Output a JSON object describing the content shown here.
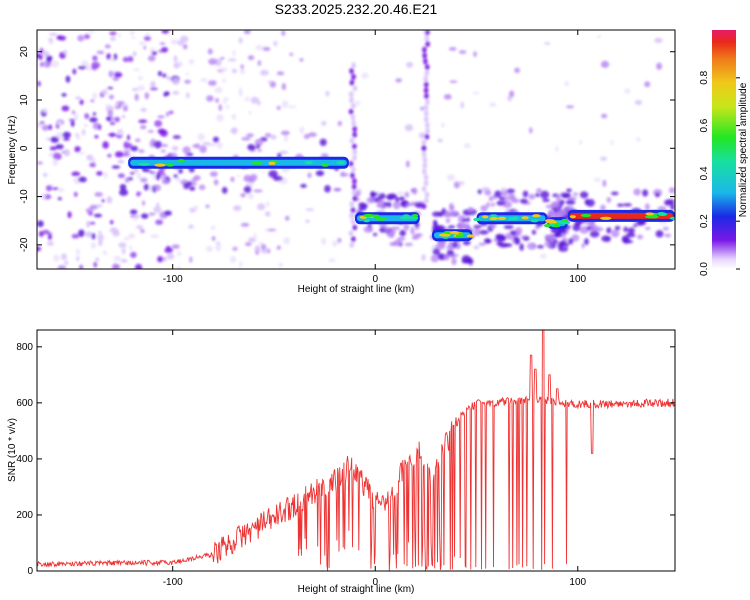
{
  "title": "S233.2025.232.20.46.E21",
  "chart_data": [
    {
      "type": "heatmap",
      "xlabel": "Height of straight line (km)",
      "ylabel": "Frequency (Hz)",
      "xlim": [
        -167,
        148
      ],
      "ylim": [
        -25,
        24.5
      ],
      "xticks": [
        -100,
        0,
        100
      ],
      "yticks": [
        -20,
        -10,
        0,
        10,
        20
      ],
      "colorbar": {
        "label": "Normalized spectral amplitude",
        "range": [
          0,
          1
        ],
        "ticks": [
          "0.0",
          "0.2",
          "0.4",
          "0.6",
          "0.8"
        ],
        "tick_values": [
          0,
          0.2,
          0.4,
          0.6,
          0.8
        ]
      },
      "ridge": [
        {
          "x_start": -122,
          "x_end": -13,
          "freq": -3
        },
        {
          "x_start": -10,
          "x_end": 22,
          "freq": -14.5
        },
        {
          "x_start": 28,
          "x_end": 48,
          "freq": -18
        },
        {
          "x_start": 50,
          "x_end": 85,
          "freq": -14.5
        },
        {
          "x_start": 85,
          "x_end": 95,
          "freq": -15.5
        },
        {
          "x_start": 95,
          "x_end": 148,
          "freq": -14
        }
      ],
      "vertical_bursts": [
        {
          "x": -11,
          "f_from": -20,
          "f_to": 18
        },
        {
          "x": 25,
          "f_from": -12,
          "f_to": 24
        }
      ]
    },
    {
      "type": "line",
      "xlabel": "Height of straight line (km)",
      "ylabel": "SNR (10 * v/v)",
      "xlim": [
        -167,
        148
      ],
      "ylim": [
        0,
        860
      ],
      "xticks": [
        -100,
        0,
        100
      ],
      "yticks": [
        0,
        200,
        400,
        600,
        800
      ],
      "color": "#ee3333",
      "envelope": [
        {
          "x": -167,
          "y": 25
        },
        {
          "x": -100,
          "y": 30
        },
        {
          "x": -80,
          "y": 60
        },
        {
          "x": -65,
          "y": 130
        },
        {
          "x": -50,
          "y": 190
        },
        {
          "x": -35,
          "y": 260
        },
        {
          "x": -20,
          "y": 320
        },
        {
          "x": -12,
          "y": 380
        },
        {
          "x": -5,
          "y": 300
        },
        {
          "x": 5,
          "y": 220
        },
        {
          "x": 15,
          "y": 380
        },
        {
          "x": 22,
          "y": 420
        },
        {
          "x": 28,
          "y": 330
        },
        {
          "x": 35,
          "y": 450
        },
        {
          "x": 42,
          "y": 550
        },
        {
          "x": 50,
          "y": 600
        },
        {
          "x": 70,
          "y": 605
        },
        {
          "x": 85,
          "y": 610
        },
        {
          "x": 100,
          "y": 595
        },
        {
          "x": 148,
          "y": 600
        }
      ],
      "spikes": [
        {
          "x": 77,
          "y": 770
        },
        {
          "x": 79,
          "y": 720
        },
        {
          "x": 83,
          "y": 860
        },
        {
          "x": 86,
          "y": 700
        },
        {
          "x": 90,
          "y": 650
        }
      ],
      "dropout_region": [
        -10,
        95
      ],
      "dip": {
        "x": 107,
        "y": 420
      }
    }
  ]
}
